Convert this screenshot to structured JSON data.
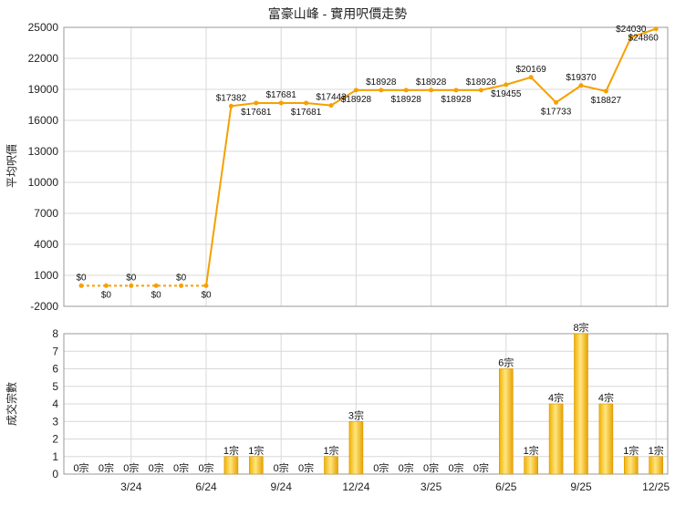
{
  "chart_data": [
    {
      "type": "line",
      "title": "富豪山峰 - 實用呎價走勢",
      "ylabel": "平均呎價",
      "ylim": [
        -2000,
        25000
      ],
      "yticks": [
        -2000,
        1000,
        4000,
        7000,
        10000,
        13000,
        16000,
        19000,
        22000,
        25000
      ],
      "xticks": [
        "3/24",
        "6/24",
        "9/24",
        "12/24",
        "3/25",
        "6/25",
        "9/25",
        "12/25"
      ],
      "grid": true,
      "series": [
        {
          "color": "#f5a000",
          "values": [
            0,
            0,
            0,
            0,
            0,
            0,
            17382,
            17681,
            17681,
            17681,
            17443,
            18928,
            18928,
            18928,
            18928,
            18928,
            18928,
            19455,
            20169,
            17733,
            19370,
            18827,
            24030,
            24860
          ],
          "labels": [
            "$0",
            "$0",
            "$0",
            "$0",
            "$0",
            "$0",
            "$17382",
            "$17681",
            "$17681",
            "$17681",
            "$17443",
            "$18928",
            "$18928",
            "$18928",
            "$18928",
            "$18928",
            "$18928",
            "$19455",
            "$20169",
            "$17733",
            "$19370",
            "$18827",
            "$24030",
            "$24860"
          ]
        }
      ]
    },
    {
      "type": "bar",
      "ylabel": "成交宗數",
      "ylim": [
        0,
        8
      ],
      "yticks": [
        0,
        1,
        2,
        3,
        4,
        5,
        6,
        7,
        8
      ],
      "xticks": [
        "3/24",
        "6/24",
        "9/24",
        "12/24",
        "3/25",
        "6/25",
        "9/25",
        "12/25"
      ],
      "grid": true,
      "series": [
        {
          "color": "#f5b820",
          "values": [
            0,
            0,
            0,
            0,
            0,
            0,
            1,
            1,
            0,
            0,
            1,
            3,
            0,
            0,
            0,
            0,
            0,
            6,
            1,
            4,
            8,
            4,
            1,
            1
          ],
          "labels": [
            "0宗",
            "0宗",
            "0宗",
            "0宗",
            "0宗",
            "0宗",
            "1宗",
            "1宗",
            "0宗",
            "0宗",
            "1宗",
            "3宗",
            "0宗",
            "0宗",
            "0宗",
            "0宗",
            "0宗",
            "6宗",
            "1宗",
            "4宗",
            "8宗",
            "4宗",
            "1宗",
            "1宗"
          ]
        }
      ]
    }
  ]
}
